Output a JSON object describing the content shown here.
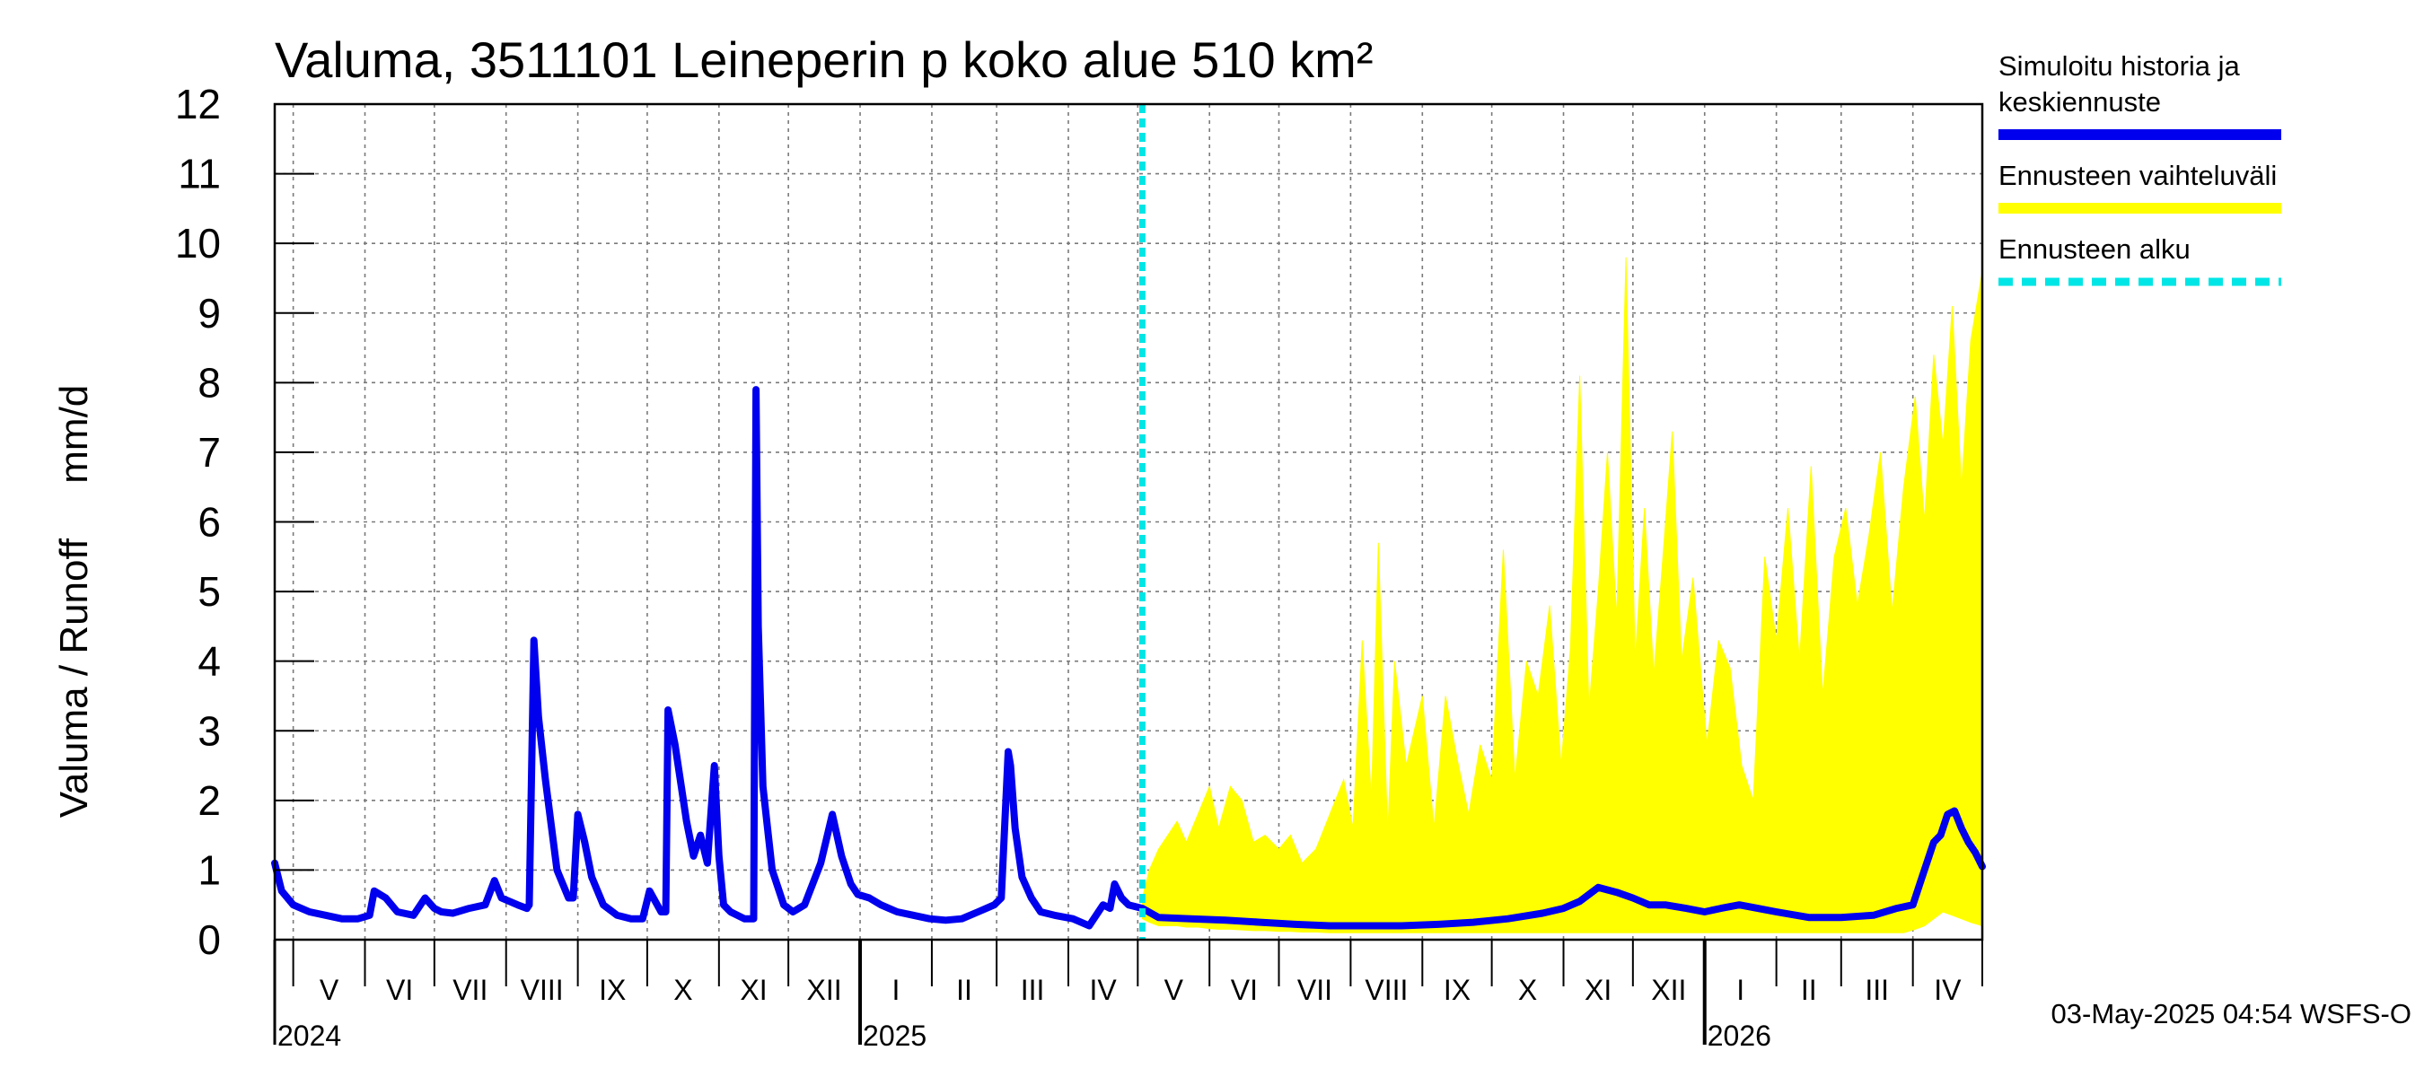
{
  "chart_data": {
    "type": "area",
    "title": "Valuma, 3511101 Leineperin p koko alue 510 km²",
    "ylabel": "Valuma / Runoff     mm/d",
    "ylim": [
      0,
      12
    ],
    "yticks": [
      "0",
      "1",
      "2",
      "3",
      "4",
      "5",
      "6",
      "7",
      "8",
      "9",
      "10",
      "11",
      "12"
    ],
    "xlim": [
      "2024-04-23",
      "2026-05-01"
    ],
    "forecast_start": "2025-05-03",
    "grid": true,
    "legend_position": "top-right-outside",
    "months": [
      {
        "label": "V",
        "start": "2024-05-01",
        "end": "2024-06-01"
      },
      {
        "label": "VI",
        "start": "2024-06-01",
        "end": "2024-07-01"
      },
      {
        "label": "VII",
        "start": "2024-07-01",
        "end": "2024-08-01"
      },
      {
        "label": "VIII",
        "start": "2024-08-01",
        "end": "2024-09-01"
      },
      {
        "label": "IX",
        "start": "2024-09-01",
        "end": "2024-10-01"
      },
      {
        "label": "X",
        "start": "2024-10-01",
        "end": "2024-11-01"
      },
      {
        "label": "XI",
        "start": "2024-11-01",
        "end": "2024-12-01"
      },
      {
        "label": "XII",
        "start": "2024-12-01",
        "end": "2025-01-01"
      },
      {
        "label": "I",
        "start": "2025-01-01",
        "end": "2025-02-01"
      },
      {
        "label": "II",
        "start": "2025-02-01",
        "end": "2025-03-01"
      },
      {
        "label": "III",
        "start": "2025-03-01",
        "end": "2025-04-01"
      },
      {
        "label": "IV",
        "start": "2025-04-01",
        "end": "2025-05-01"
      },
      {
        "label": "V",
        "start": "2025-05-01",
        "end": "2025-06-01"
      },
      {
        "label": "VI",
        "start": "2025-06-01",
        "end": "2025-07-01"
      },
      {
        "label": "VII",
        "start": "2025-07-01",
        "end": "2025-08-01"
      },
      {
        "label": "VIII",
        "start": "2025-08-01",
        "end": "2025-09-01"
      },
      {
        "label": "IX",
        "start": "2025-09-01",
        "end": "2025-10-01"
      },
      {
        "label": "X",
        "start": "2025-10-01",
        "end": "2025-11-01"
      },
      {
        "label": "XI",
        "start": "2025-11-01",
        "end": "2025-12-01"
      },
      {
        "label": "XII",
        "start": "2025-12-01",
        "end": "2026-01-01"
      },
      {
        "label": "I",
        "start": "2026-01-01",
        "end": "2026-02-01"
      },
      {
        "label": "II",
        "start": "2026-02-01",
        "end": "2026-03-01"
      },
      {
        "label": "III",
        "start": "2026-03-01",
        "end": "2026-04-01"
      },
      {
        "label": "IV",
        "start": "2026-04-01",
        "end": "2026-05-01"
      }
    ],
    "years": [
      {
        "label": "2024",
        "date": "2024-04-23"
      },
      {
        "label": "2025",
        "date": "2025-01-01"
      },
      {
        "label": "2026",
        "date": "2026-01-01"
      }
    ],
    "series": [
      {
        "name": "Simuloitu historia ja keskiennuste",
        "color": "#0000ee",
        "x": [
          "2024-04-23",
          "2024-04-26",
          "2024-05-01",
          "2024-05-08",
          "2024-05-15",
          "2024-05-22",
          "2024-05-29",
          "2024-06-03",
          "2024-06-05",
          "2024-06-10",
          "2024-06-15",
          "2024-06-22",
          "2024-06-27",
          "2024-07-01",
          "2024-07-04",
          "2024-07-09",
          "2024-07-16",
          "2024-07-23",
          "2024-07-27",
          "2024-07-30",
          "2024-08-06",
          "2024-08-10",
          "2024-08-11",
          "2024-08-13",
          "2024-08-15",
          "2024-08-18",
          "2024-08-23",
          "2024-08-28",
          "2024-08-30",
          "2024-09-01",
          "2024-09-04",
          "2024-09-07",
          "2024-09-12",
          "2024-09-18",
          "2024-09-24",
          "2024-09-29",
          "2024-10-02",
          "2024-10-07",
          "2024-10-09",
          "2024-10-10",
          "2024-10-13",
          "2024-10-18",
          "2024-10-21",
          "2024-10-24",
          "2024-10-27",
          "2024-10-30",
          "2024-11-01",
          "2024-11-03",
          "2024-11-06",
          "2024-11-12",
          "2024-11-16",
          "2024-11-17",
          "2024-11-18",
          "2024-11-20",
          "2024-11-24",
          "2024-11-29",
          "2024-12-03",
          "2024-12-08",
          "2024-12-15",
          "2024-12-20",
          "2024-12-24",
          "2024-12-28",
          "2024-12-31",
          "2025-01-05",
          "2025-01-10",
          "2025-01-17",
          "2025-01-24",
          "2025-01-31",
          "2025-02-07",
          "2025-02-14",
          "2025-02-21",
          "2025-02-28",
          "2025-03-03",
          "2025-03-06",
          "2025-03-07",
          "2025-03-09",
          "2025-03-12",
          "2025-03-16",
          "2025-03-20",
          "2025-03-26",
          "2025-04-03",
          "2025-04-10",
          "2025-04-16",
          "2025-04-19",
          "2025-04-21",
          "2025-04-24",
          "2025-04-27",
          "2025-05-03",
          "2025-05-10",
          "2025-05-24",
          "2025-06-08",
          "2025-06-23",
          "2025-07-08",
          "2025-07-23",
          "2025-08-08",
          "2025-08-23",
          "2025-09-08",
          "2025-09-23",
          "2025-10-08",
          "2025-10-23",
          "2025-11-01",
          "2025-11-08",
          "2025-11-16",
          "2025-11-24",
          "2025-12-01",
          "2025-12-08",
          "2025-12-15",
          "2025-12-24",
          "2026-01-01",
          "2026-01-08",
          "2026-01-16",
          "2026-01-24",
          "2026-02-01",
          "2026-02-15",
          "2026-03-01",
          "2026-03-15",
          "2026-03-25",
          "2026-04-01",
          "2026-04-04",
          "2026-04-07",
          "2026-04-10",
          "2026-04-13",
          "2026-04-16",
          "2026-04-19",
          "2026-04-22",
          "2026-04-25",
          "2026-04-28",
          "2026-05-01"
        ],
        "values": [
          1.1,
          0.7,
          0.5,
          0.4,
          0.35,
          0.3,
          0.3,
          0.35,
          0.7,
          0.6,
          0.4,
          0.35,
          0.6,
          0.45,
          0.4,
          0.38,
          0.45,
          0.5,
          0.85,
          0.6,
          0.5,
          0.45,
          0.5,
          4.3,
          3.2,
          2.3,
          1.0,
          0.6,
          0.6,
          1.8,
          1.4,
          0.9,
          0.5,
          0.35,
          0.3,
          0.3,
          0.7,
          0.4,
          0.4,
          3.3,
          2.8,
          1.7,
          1.2,
          1.5,
          1.1,
          2.5,
          1.2,
          0.5,
          0.4,
          0.3,
          0.3,
          7.9,
          4.5,
          2.2,
          1.0,
          0.5,
          0.4,
          0.5,
          1.1,
          1.8,
          1.2,
          0.8,
          0.65,
          0.6,
          0.5,
          0.4,
          0.35,
          0.3,
          0.28,
          0.3,
          0.4,
          0.5,
          0.6,
          2.7,
          2.5,
          1.6,
          0.9,
          0.6,
          0.4,
          0.35,
          0.3,
          0.2,
          0.5,
          0.45,
          0.8,
          0.6,
          0.5,
          0.45,
          0.32,
          0.3,
          0.28,
          0.25,
          0.22,
          0.2,
          0.2,
          0.2,
          0.22,
          0.25,
          0.3,
          0.38,
          0.45,
          0.55,
          0.75,
          0.68,
          0.6,
          0.5,
          0.5,
          0.45,
          0.4,
          0.45,
          0.5,
          0.45,
          0.4,
          0.32,
          0.32,
          0.35,
          0.45,
          0.5,
          0.8,
          1.1,
          1.4,
          1.5,
          1.8,
          1.85,
          1.6,
          1.4,
          1.25,
          1.05
        ]
      },
      {
        "name": "Ennusteen vaihteluväli",
        "color": "#ffff00",
        "x": [
          "2025-05-03",
          "2025-05-06",
          "2025-05-10",
          "2025-05-14",
          "2025-05-18",
          "2025-05-22",
          "2025-05-27",
          "2025-06-01",
          "2025-06-05",
          "2025-06-10",
          "2025-06-15",
          "2025-06-20",
          "2025-06-25",
          "2025-07-01",
          "2025-07-06",
          "2025-07-11",
          "2025-07-17",
          "2025-07-23",
          "2025-07-29",
          "2025-08-02",
          "2025-08-06",
          "2025-08-10",
          "2025-08-13",
          "2025-08-17",
          "2025-08-20",
          "2025-08-25",
          "2025-09-01",
          "2025-09-06",
          "2025-09-11",
          "2025-09-16",
          "2025-09-21",
          "2025-09-26",
          "2025-10-01",
          "2025-10-06",
          "2025-10-11",
          "2025-10-16",
          "2025-10-21",
          "2025-10-26",
          "2025-10-31",
          "2025-11-04",
          "2025-11-08",
          "2025-11-12",
          "2025-11-16",
          "2025-11-20",
          "2025-11-24",
          "2025-11-28",
          "2025-12-02",
          "2025-12-06",
          "2025-12-10",
          "2025-12-14",
          "2025-12-18",
          "2025-12-22",
          "2025-12-27",
          "2026-01-02",
          "2026-01-07",
          "2026-01-12",
          "2026-01-17",
          "2026-01-22",
          "2026-01-27",
          "2026-02-01",
          "2026-02-06",
          "2026-02-11",
          "2026-02-16",
          "2026-02-21",
          "2026-02-26",
          "2026-03-03",
          "2026-03-08",
          "2026-03-13",
          "2026-03-18",
          "2026-03-23",
          "2026-03-28",
          "2026-04-02",
          "2026-04-06",
          "2026-04-10",
          "2026-04-14",
          "2026-04-18",
          "2026-04-22",
          "2026-04-26",
          "2026-05-01"
        ],
        "upper": [
          0.6,
          1.0,
          1.3,
          1.5,
          1.7,
          1.4,
          1.8,
          2.2,
          1.6,
          2.2,
          2.0,
          1.4,
          1.5,
          1.3,
          1.5,
          1.1,
          1.3,
          1.8,
          2.3,
          1.6,
          4.3,
          2.0,
          5.7,
          1.5,
          4.0,
          2.5,
          3.5,
          1.6,
          3.5,
          2.6,
          1.8,
          2.8,
          2.3,
          5.6,
          2.3,
          4.0,
          3.5,
          4.8,
          2.5,
          4.2,
          8.1,
          3.3,
          5.0,
          7.0,
          4.6,
          9.8,
          4.0,
          6.2,
          3.8,
          5.5,
          7.3,
          4.0,
          5.2,
          2.8,
          4.3,
          3.9,
          2.5,
          2.0,
          5.5,
          4.3,
          6.2,
          4.0,
          6.8,
          3.5,
          5.5,
          6.2,
          4.8,
          5.8,
          7.0,
          4.7,
          6.5,
          7.8,
          6.0,
          8.4,
          7.1,
          9.1,
          6.5,
          8.6,
          9.6
        ],
        "lower": [
          0.3,
          0.25,
          0.2,
          0.2,
          0.2,
          0.18,
          0.18,
          0.16,
          0.15,
          0.15,
          0.14,
          0.13,
          0.13,
          0.12,
          0.12,
          0.11,
          0.11,
          0.1,
          0.1,
          0.1,
          0.1,
          0.1,
          0.1,
          0.1,
          0.1,
          0.1,
          0.1,
          0.1,
          0.1,
          0.1,
          0.1,
          0.1,
          0.1,
          0.1,
          0.1,
          0.1,
          0.1,
          0.1,
          0.1,
          0.1,
          0.1,
          0.1,
          0.1,
          0.1,
          0.1,
          0.1,
          0.1,
          0.1,
          0.1,
          0.1,
          0.1,
          0.1,
          0.1,
          0.1,
          0.1,
          0.1,
          0.1,
          0.1,
          0.1,
          0.1,
          0.1,
          0.1,
          0.1,
          0.1,
          0.1,
          0.1,
          0.1,
          0.1,
          0.1,
          0.1,
          0.1,
          0.15,
          0.2,
          0.3,
          0.4,
          0.35,
          0.3,
          0.25,
          0.2
        ]
      },
      {
        "name": "Ennusteen alku",
        "color": "#00e5e5"
      }
    ]
  },
  "legend": {
    "items": [
      {
        "lines": [
          "Simuloitu historia ja",
          "keskiennuste"
        ],
        "color": "#0000ee",
        "style": "solid"
      },
      {
        "lines": [
          "Ennusteen vaihteluväli"
        ],
        "color": "#ffff00",
        "style": "solid"
      },
      {
        "lines": [
          "Ennusteen alku"
        ],
        "color": "#00e5e5",
        "style": "dashed"
      }
    ]
  },
  "footer": "03-May-2025 04:54 WSFS-O"
}
